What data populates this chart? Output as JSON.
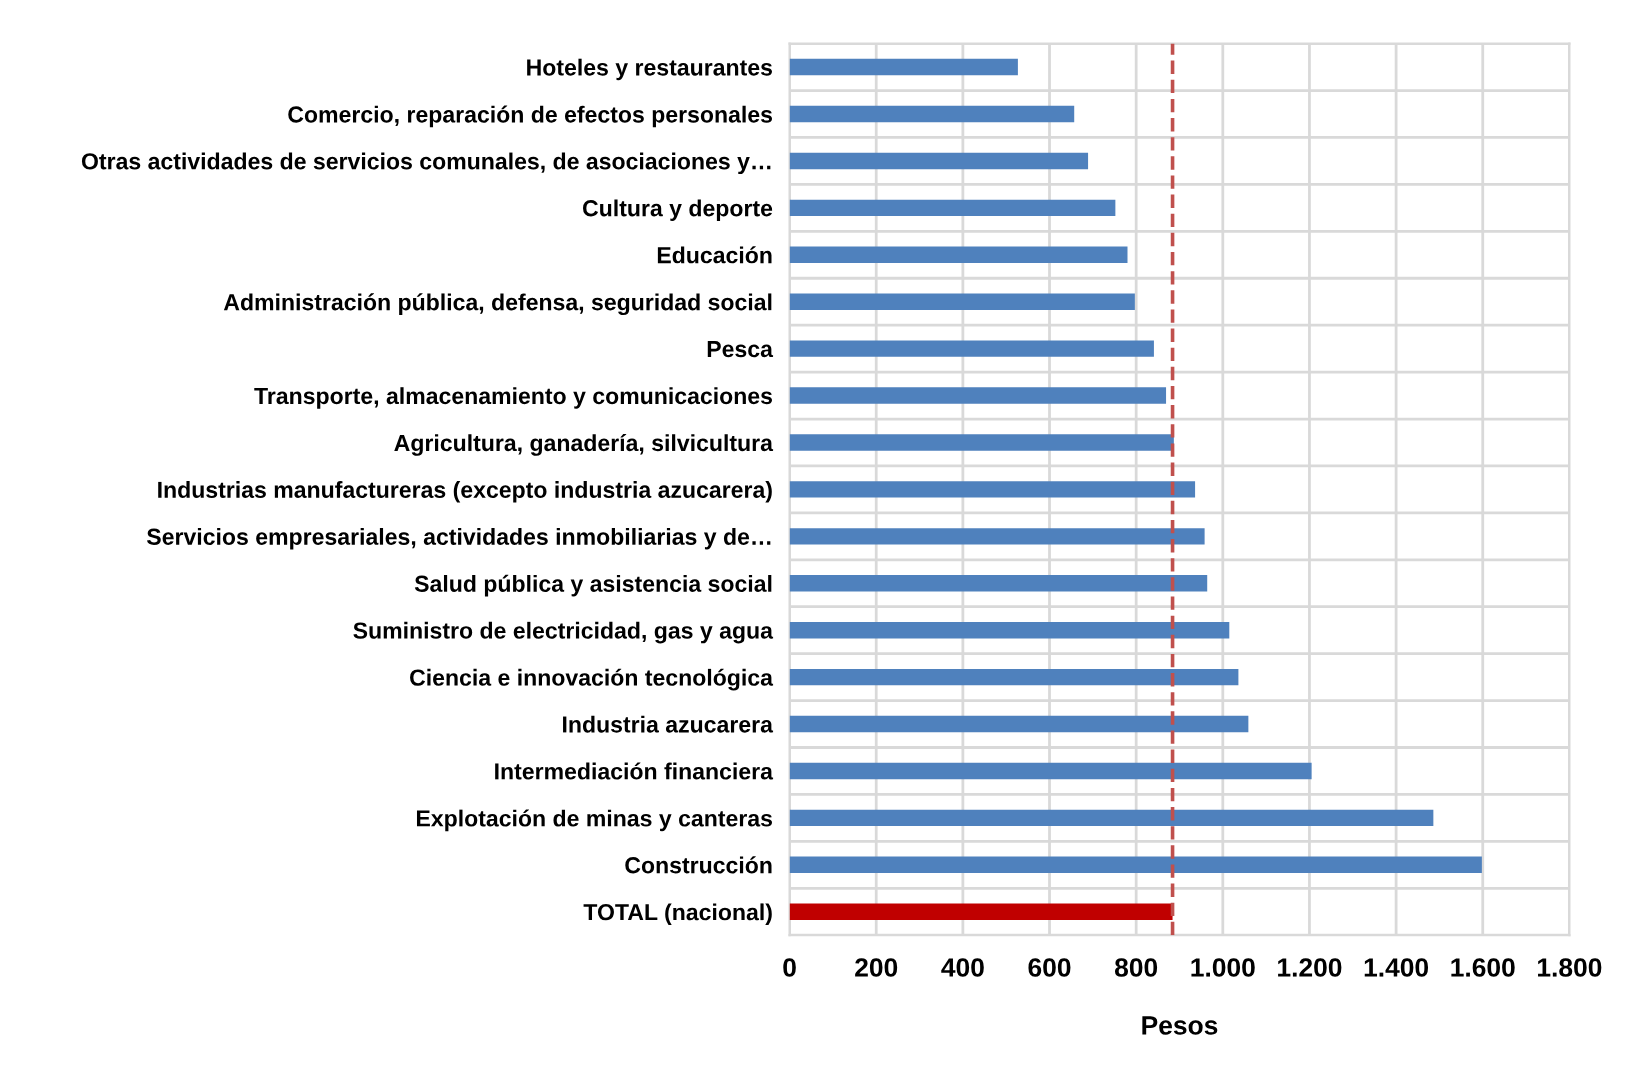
{
  "chart_data": {
    "type": "bar",
    "orientation": "horizontal",
    "xlabel": "Pesos",
    "categories": [
      "Hoteles y restaurantes",
      "Comercio, reparación de efectos personales",
      "Otras actividades de servicios comunales, de asociaciones y…",
      "Cultura y deporte",
      "Educación",
      "Administración pública, defensa, seguridad social",
      "Pesca",
      "Transporte, almacenamiento y comunicaciones",
      "Agricultura, ganadería, silvicultura",
      "Industrias manufactureras (excepto industria azucarera)",
      "Servicios empresariales, actividades inmobiliarias y de…",
      "Salud pública y asistencia social",
      "Suministro de electricidad, gas y agua",
      "Ciencia e innovación tecnológica",
      "Industria azucarera",
      "Intermediación financiera",
      "Explotación de minas y canteras",
      "Construcción",
      "TOTAL (nacional)"
    ],
    "values": [
      527,
      657,
      689,
      752,
      780,
      797,
      841,
      869,
      887,
      936,
      958,
      964,
      1015,
      1036,
      1059,
      1205,
      1486,
      1598,
      884
    ],
    "colors": [
      "#4f81bd",
      "#4f81bd",
      "#4f81bd",
      "#4f81bd",
      "#4f81bd",
      "#4f81bd",
      "#4f81bd",
      "#4f81bd",
      "#4f81bd",
      "#4f81bd",
      "#4f81bd",
      "#4f81bd",
      "#4f81bd",
      "#4f81bd",
      "#4f81bd",
      "#4f81bd",
      "#4f81bd",
      "#4f81bd",
      "#c00000"
    ],
    "xlim": [
      0,
      1800
    ],
    "xticks": [
      0,
      200,
      400,
      600,
      800,
      {
        "value": 1000,
        "label": "1.000"
      },
      {
        "value": 1200,
        "label": "1.200"
      },
      {
        "value": 1400,
        "label": "1.400"
      },
      {
        "value": 1600,
        "label": "1.600"
      },
      {
        "value": 1800,
        "label": "1.800"
      }
    ],
    "ref_lines": [
      {
        "axis": "x",
        "value": 884,
        "label": null,
        "color": "#c0504d",
        "line_style": "dashed"
      }
    ],
    "grid": true
  }
}
